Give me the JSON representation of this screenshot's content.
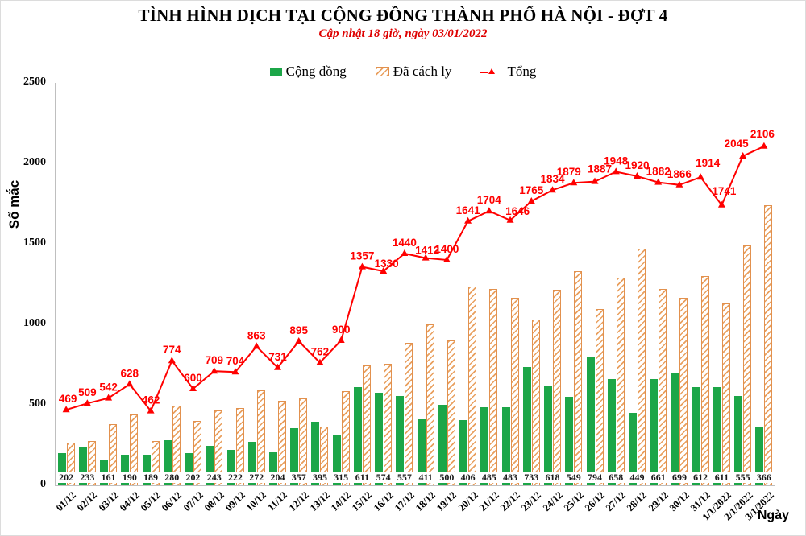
{
  "chart_data": {
    "type": "combo-bar-line",
    "title": "TÌNH HÌNH DỊCH TẠI CỘNG ĐỒNG THÀNH PHỐ HÀ NỘI - ĐỢT 4",
    "subtitle": "Cập nhật 18 giờ, ngày 03/01/2022",
    "xlabel": "Ngày",
    "ylabel": "Số mắc",
    "ylim": [
      0,
      2500
    ],
    "y_ticks": [
      0,
      500,
      1000,
      1500,
      2000,
      2500
    ],
    "grid": false,
    "legend_position": "top-center",
    "categories": [
      "01/12",
      "02/12",
      "03/12",
      "04/12",
      "05/12",
      "06/12",
      "07/12",
      "08/12",
      "09/12",
      "10/12",
      "11/12",
      "12/12",
      "13/12",
      "14/12",
      "15/12",
      "16/12",
      "17/12",
      "18/12",
      "19/12",
      "20/12",
      "21/12",
      "22/12",
      "23/12",
      "24/12",
      "25/12",
      "26/12",
      "27/12",
      "28/12",
      "29/12",
      "30/12",
      "31/12",
      "1/1/2022",
      "2/1/2022",
      "3/1/2022"
    ],
    "series": [
      {
        "name": "Cộng đồng",
        "type": "bar",
        "style": "solid",
        "color": "#1CA648",
        "value_labels": "black text in white boxes at bar base",
        "values": [
          202,
          233,
          161,
          190,
          189,
          280,
          202,
          243,
          222,
          272,
          204,
          357,
          395,
          315,
          611,
          574,
          557,
          411,
          500,
          406,
          485,
          483,
          733,
          618,
          549,
          794,
          658,
          449,
          661,
          699,
          612,
          611,
          555,
          366
        ]
      },
      {
        "name": "Đã cách ly",
        "type": "bar",
        "style": "diagonal-hatch",
        "color": "#E9A05F",
        "border_color": "#E2914E",
        "value_labels": "none",
        "values": [
          267,
          276,
          381,
          438,
          273,
          494,
          398,
          466,
          482,
          591,
          527,
          538,
          367,
          585,
          746,
          756,
          883,
          1001,
          900,
          1235,
          1219,
          1163,
          1032,
          1216,
          1330,
          1093,
          1290,
          1471,
          1221,
          1167,
          1302,
          1130,
          1490,
          1740
        ]
      },
      {
        "name": "Tổng",
        "type": "line",
        "marker": "triangle",
        "color": "#FF0000",
        "value_labels": "red bold numbers above points",
        "values": [
          469,
          509,
          542,
          628,
          462,
          774,
          600,
          709,
          704,
          863,
          731,
          895,
          762,
          900,
          1357,
          1330,
          1440,
          1412,
          1400,
          1641,
          1704,
          1646,
          1765,
          1834,
          1879,
          1887,
          1948,
          1920,
          1882,
          1866,
          1914,
          1741,
          2045,
          2106
        ]
      }
    ]
  },
  "colors": {
    "subtitle_text": "#DE0000",
    "axis_line": "#BFBFBF",
    "value_label_text": "#1A1A1A",
    "value_label_bg": "#FFFFFF"
  }
}
